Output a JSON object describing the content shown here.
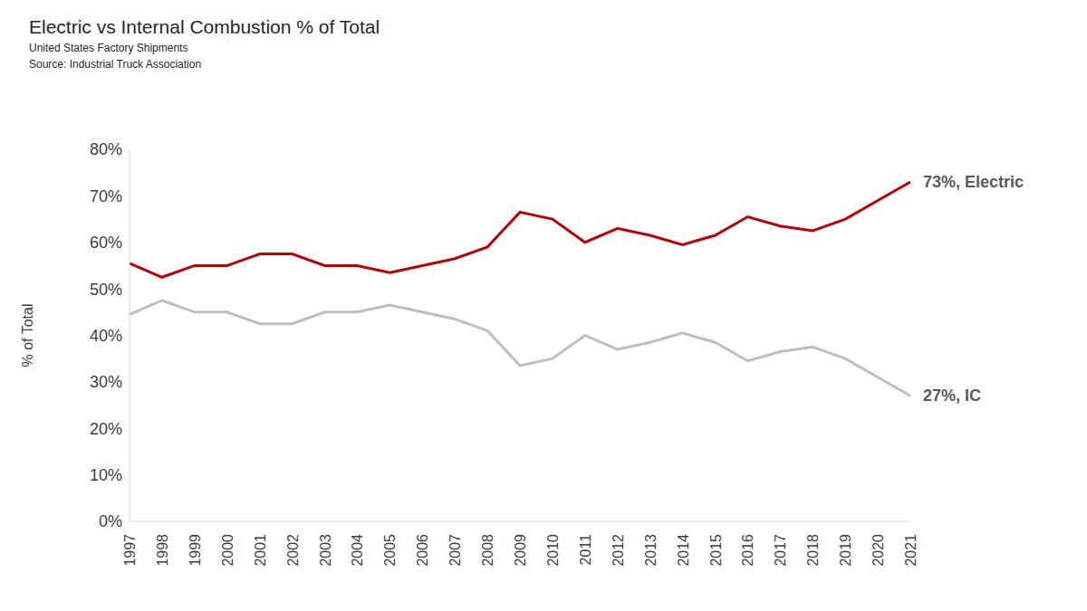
{
  "chart_data": {
    "type": "line",
    "title": "Electric vs Internal Combustion % of Total",
    "subtitle": "United States Factory Shipments",
    "source": "Source: Industrial Truck Association",
    "y_label": "% of Total",
    "categories": [
      "1997",
      "1998",
      "1999",
      "2000",
      "2001",
      "2002",
      "2003",
      "2004",
      "2005",
      "2006",
      "2007",
      "2008",
      "2009",
      "2010",
      "2011",
      "2012",
      "2013",
      "2014",
      "2015",
      "2016",
      "2017",
      "2018",
      "2019",
      "2020",
      "2021"
    ],
    "series": [
      {
        "name": "Electric",
        "color": "#c00000",
        "end_label": "73%, Electric",
        "values": [
          55.5,
          52.5,
          55,
          55,
          57.5,
          57.5,
          55,
          55,
          53.5,
          55,
          56.5,
          59,
          66.5,
          65,
          60,
          63,
          61.5,
          59.5,
          61.5,
          65.5,
          63.5,
          62.5,
          65,
          69,
          73
        ]
      },
      {
        "name": "IC",
        "color": "#bfbfbf",
        "end_label": "27%, IC",
        "values": [
          44.5,
          47.5,
          45,
          45,
          42.5,
          42.5,
          45,
          45,
          46.5,
          45,
          43.5,
          41,
          33.5,
          35,
          40,
          37,
          38.5,
          40.5,
          38.5,
          34.5,
          36.5,
          37.5,
          35,
          31,
          27
        ]
      }
    ],
    "ylim": [
      0,
      80
    ],
    "yticks": [
      {
        "value": 0,
        "label": "0%"
      },
      {
        "value": 10,
        "label": "10%"
      },
      {
        "value": 20,
        "label": "20%"
      },
      {
        "value": 30,
        "label": "30%"
      },
      {
        "value": 40,
        "label": "40%"
      },
      {
        "value": 50,
        "label": "50%"
      },
      {
        "value": 60,
        "label": "60%"
      },
      {
        "value": 70,
        "label": "70%"
      },
      {
        "value": 80,
        "label": "80%"
      }
    ],
    "grid": false
  }
}
